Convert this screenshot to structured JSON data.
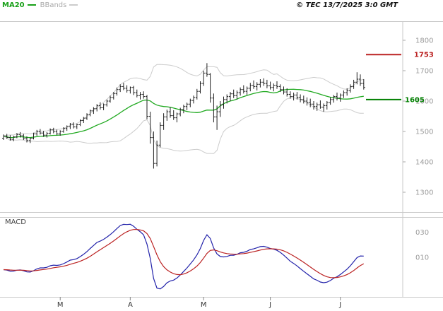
{
  "header": {
    "ma_label": "MA20",
    "bbands_label": "BBands",
    "copyright": "© TEC 13/7/2025 3:0 GMT"
  },
  "macd_panel": {
    "label": "MACD"
  },
  "colors": {
    "ma20": "#22aa22",
    "bbands": "#cccccc",
    "candle": "#222222",
    "macd_line": "#2222aa",
    "macd_signal": "#bb2222",
    "frame": "#c9c9c9",
    "axis_text": "#999999",
    "month_text": "#333333"
  },
  "chart_data": {
    "type": "candlestick",
    "title": "",
    "overlays": [
      "MA20",
      "BBands"
    ],
    "price_axis": {
      "ticks": [
        1800,
        1700,
        1600,
        1500,
        1400,
        1300
      ],
      "visible_range": [
        1240,
        1860
      ]
    },
    "time_axis": {
      "tick_labels": [
        "M",
        "A",
        "M",
        "J",
        "J"
      ],
      "tick_indices": [
        17,
        38,
        60,
        80,
        101
      ]
    },
    "levels": [
      {
        "label": "1753",
        "value": 1753,
        "color": "#bb2222"
      },
      {
        "label": "1605",
        "value": 1605,
        "color": "#008000"
      }
    ],
    "indicator": {
      "type": "MACD",
      "params": "12,26,9",
      "tick_labels": [
        "030",
        "010"
      ],
      "tick_values": [
        30,
        10
      ]
    },
    "ohlc": [
      [
        1478,
        1490,
        1472,
        1485
      ],
      [
        1485,
        1492,
        1476,
        1480
      ],
      [
        1480,
        1488,
        1470,
        1474
      ],
      [
        1474,
        1486,
        1468,
        1482
      ],
      [
        1482,
        1495,
        1478,
        1490
      ],
      [
        1490,
        1498,
        1480,
        1486
      ],
      [
        1486,
        1492,
        1472,
        1476
      ],
      [
        1476,
        1484,
        1464,
        1470
      ],
      [
        1470,
        1480,
        1462,
        1478
      ],
      [
        1478,
        1496,
        1474,
        1492
      ],
      [
        1492,
        1505,
        1486,
        1500
      ],
      [
        1500,
        1508,
        1490,
        1495
      ],
      [
        1495,
        1502,
        1482,
        1488
      ],
      [
        1488,
        1498,
        1480,
        1494
      ],
      [
        1494,
        1510,
        1490,
        1505
      ],
      [
        1505,
        1512,
        1494,
        1500
      ],
      [
        1500,
        1506,
        1488,
        1492
      ],
      [
        1492,
        1504,
        1486,
        1500
      ],
      [
        1500,
        1514,
        1496,
        1510
      ],
      [
        1510,
        1520,
        1502,
        1516
      ],
      [
        1516,
        1528,
        1508,
        1524
      ],
      [
        1524,
        1530,
        1510,
        1515
      ],
      [
        1515,
        1526,
        1508,
        1522
      ],
      [
        1522,
        1540,
        1518,
        1536
      ],
      [
        1536,
        1548,
        1528,
        1544
      ],
      [
        1544,
        1560,
        1538,
        1555
      ],
      [
        1555,
        1572,
        1550,
        1568
      ],
      [
        1568,
        1580,
        1558,
        1575
      ],
      [
        1575,
        1590,
        1566,
        1585
      ],
      [
        1585,
        1596,
        1572,
        1578
      ],
      [
        1578,
        1592,
        1570,
        1588
      ],
      [
        1588,
        1605,
        1582,
        1600
      ],
      [
        1600,
        1618,
        1595,
        1612
      ],
      [
        1612,
        1630,
        1605,
        1625
      ],
      [
        1625,
        1645,
        1618,
        1638
      ],
      [
        1638,
        1655,
        1630,
        1648
      ],
      [
        1648,
        1660,
        1636,
        1642
      ],
      [
        1642,
        1652,
        1628,
        1635
      ],
      [
        1635,
        1648,
        1625,
        1645
      ],
      [
        1645,
        1650,
        1620,
        1628
      ],
      [
        1628,
        1638,
        1612,
        1618
      ],
      [
        1618,
        1630,
        1605,
        1622
      ],
      [
        1622,
        1632,
        1608,
        1615
      ],
      [
        1615,
        1620,
        1540,
        1550
      ],
      [
        1550,
        1565,
        1460,
        1480
      ],
      [
        1480,
        1500,
        1378,
        1395
      ],
      [
        1395,
        1470,
        1385,
        1455
      ],
      [
        1455,
        1530,
        1448,
        1520
      ],
      [
        1520,
        1560,
        1505,
        1548
      ],
      [
        1548,
        1572,
        1535,
        1565
      ],
      [
        1565,
        1580,
        1545,
        1552
      ],
      [
        1552,
        1570,
        1538,
        1545
      ],
      [
        1545,
        1562,
        1530,
        1558
      ],
      [
        1558,
        1578,
        1550,
        1572
      ],
      [
        1572,
        1588,
        1560,
        1582
      ],
      [
        1582,
        1595,
        1570,
        1590
      ],
      [
        1590,
        1608,
        1580,
        1602
      ],
      [
        1602,
        1618,
        1592,
        1612
      ],
      [
        1612,
        1640,
        1605,
        1632
      ],
      [
        1632,
        1665,
        1625,
        1658
      ],
      [
        1658,
        1700,
        1650,
        1692
      ],
      [
        1692,
        1725,
        1680,
        1688
      ],
      [
        1688,
        1692,
        1595,
        1610
      ],
      [
        1610,
        1625,
        1530,
        1548
      ],
      [
        1548,
        1585,
        1505,
        1565
      ],
      [
        1565,
        1600,
        1548,
        1588
      ],
      [
        1588,
        1615,
        1575,
        1605
      ],
      [
        1605,
        1622,
        1592,
        1615
      ],
      [
        1615,
        1630,
        1600,
        1624
      ],
      [
        1624,
        1638,
        1610,
        1618
      ],
      [
        1618,
        1635,
        1605,
        1628
      ],
      [
        1628,
        1645,
        1618,
        1638
      ],
      [
        1638,
        1652,
        1625,
        1632
      ],
      [
        1632,
        1648,
        1620,
        1642
      ],
      [
        1642,
        1660,
        1632,
        1652
      ],
      [
        1652,
        1668,
        1640,
        1648
      ],
      [
        1648,
        1662,
        1635,
        1655
      ],
      [
        1655,
        1672,
        1645,
        1662
      ],
      [
        1662,
        1675,
        1650,
        1658
      ],
      [
        1658,
        1670,
        1642,
        1650
      ],
      [
        1650,
        1664,
        1638,
        1645
      ],
      [
        1645,
        1658,
        1632,
        1652
      ],
      [
        1652,
        1665,
        1640,
        1648
      ],
      [
        1648,
        1655,
        1630,
        1638
      ],
      [
        1638,
        1648,
        1622,
        1630
      ],
      [
        1630,
        1642,
        1615,
        1622
      ],
      [
        1622,
        1632,
        1608,
        1615
      ],
      [
        1615,
        1628,
        1602,
        1620
      ],
      [
        1620,
        1630,
        1605,
        1612
      ],
      [
        1612,
        1622,
        1596,
        1605
      ],
      [
        1605,
        1618,
        1592,
        1600
      ],
      [
        1600,
        1612,
        1585,
        1595
      ],
      [
        1595,
        1608,
        1580,
        1590
      ],
      [
        1590,
        1600,
        1572,
        1582
      ],
      [
        1582,
        1595,
        1568,
        1588
      ],
      [
        1588,
        1602,
        1575,
        1580
      ],
      [
        1580,
        1592,
        1565,
        1585
      ],
      [
        1585,
        1600,
        1572,
        1595
      ],
      [
        1595,
        1612,
        1588,
        1605
      ],
      [
        1605,
        1620,
        1595,
        1615
      ],
      [
        1615,
        1628,
        1602,
        1610
      ],
      [
        1610,
        1625,
        1598,
        1620
      ],
      [
        1620,
        1635,
        1610,
        1628
      ],
      [
        1628,
        1642,
        1618,
        1635
      ],
      [
        1635,
        1655,
        1628,
        1648
      ],
      [
        1648,
        1670,
        1640,
        1662
      ],
      [
        1662,
        1695,
        1655,
        1672
      ],
      [
        1672,
        1688,
        1650,
        1658
      ],
      [
        1658,
        1672,
        1638,
        1645
      ]
    ]
  }
}
